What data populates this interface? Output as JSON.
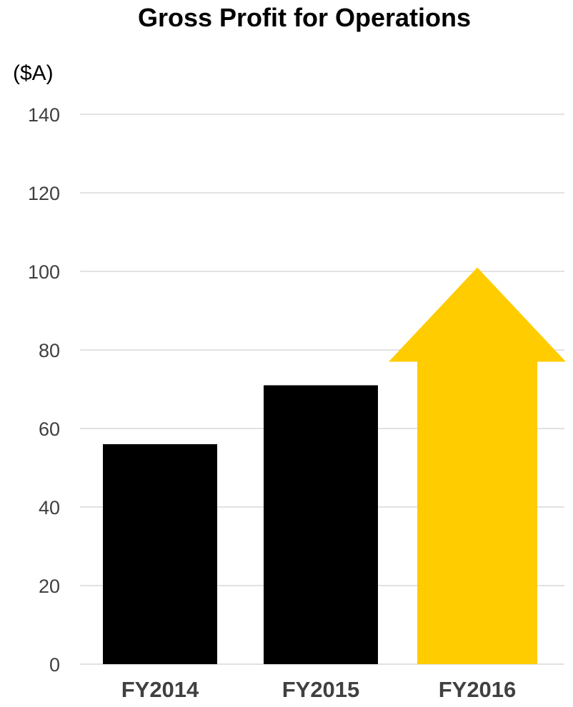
{
  "chart_data": {
    "type": "bar",
    "title": "Gross Profit for Operations",
    "ylabel": "($A)",
    "categories": [
      "FY2014",
      "FY2015",
      "FY2016"
    ],
    "values": [
      56,
      71,
      101
    ],
    "ylim": [
      0,
      140
    ],
    "yticks": [
      0,
      20,
      40,
      60,
      80,
      100,
      120,
      140
    ],
    "grid": true,
    "colors": {
      "bar": "#000000",
      "highlight": "#FFCC00",
      "grid": "#D9D9D9",
      "tick_text": "#404040"
    },
    "highlight": {
      "category": "FY2016",
      "shape": "up-arrow"
    }
  }
}
